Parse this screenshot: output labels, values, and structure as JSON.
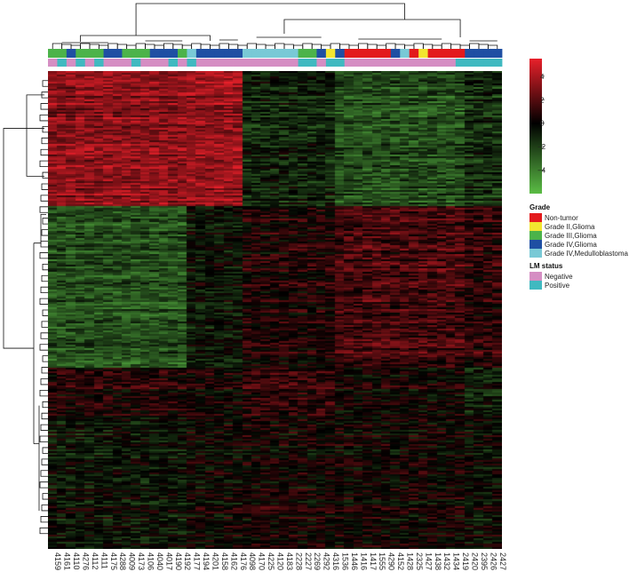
{
  "chart_data": {
    "type": "heatmap",
    "samples": [
      "4159",
      "4161",
      "4110",
      "4276",
      "4112",
      "4111",
      "4175",
      "4288",
      "4009",
      "4173",
      "4106",
      "4040",
      "4017",
      "4190",
      "4192",
      "4177",
      "4194",
      "4201",
      "4158",
      "4162",
      "4176",
      "4098",
      "4170",
      "4225",
      "4120",
      "4183",
      "2228",
      "2227",
      "2269",
      "4292",
      "4316",
      "1536",
      "1446",
      "1416",
      "1417",
      "1555",
      "4290",
      "4152",
      "1428",
      "2325",
      "1427",
      "1438",
      "1432",
      "1434",
      "2419",
      "2420",
      "2395",
      "2426",
      "2427"
    ],
    "grade_annotation": [
      "Grade III,Glioma",
      "Grade III,Glioma",
      "Grade IV,Glioma",
      "Grade III,Glioma",
      "Grade III,Glioma",
      "Grade III,Glioma",
      "Grade IV,Glioma",
      "Grade IV,Glioma",
      "Grade III,Glioma",
      "Grade III,Glioma",
      "Grade III,Glioma",
      "Grade IV,Glioma",
      "Grade IV,Glioma",
      "Grade IV,Glioma",
      "Grade III,Glioma",
      "Grade IV,Medulloblastoma",
      "Grade IV,Glioma",
      "Grade IV,Glioma",
      "Grade IV,Glioma",
      "Grade IV,Glioma",
      "Grade IV,Glioma",
      "Grade IV,Medulloblastoma",
      "Grade IV,Medulloblastoma",
      "Grade IV,Medulloblastoma",
      "Grade IV,Medulloblastoma",
      "Grade IV,Medulloblastoma",
      "Grade IV,Medulloblastoma",
      "Grade III,Glioma",
      "Grade III,Glioma",
      "Grade IV,Glioma",
      "Grade II,Glioma",
      "Grade IV,Glioma",
      "Non-tumor",
      "Non-tumor",
      "Non-tumor",
      "Non-tumor",
      "Non-tumor",
      "Grade IV,Glioma",
      "Grade IV,Medulloblastoma",
      "Non-tumor",
      "Grade II,Glioma",
      "Non-tumor",
      "Non-tumor",
      "Non-tumor",
      "Non-tumor",
      "Grade IV,Glioma",
      "Grade IV,Glioma",
      "Grade IV,Glioma",
      "Grade IV,Glioma"
    ],
    "lm_annotation": [
      "Negative",
      "Positive",
      "Negative",
      "Positive",
      "Negative",
      "Positive",
      "Negative",
      "Negative",
      "Negative",
      "Positive",
      "Negative",
      "Negative",
      "Negative",
      "Positive",
      "Negative",
      "Positive",
      "Negative",
      "Negative",
      "Negative",
      "Negative",
      "Negative",
      "Negative",
      "Negative",
      "Negative",
      "Negative",
      "Negative",
      "Negative",
      "Positive",
      "Positive",
      "Negative",
      "Positive",
      "Positive",
      "Negative",
      "Negative",
      "Negative",
      "Negative",
      "Negative",
      "Negative",
      "Negative",
      "Negative",
      "Negative",
      "Negative",
      "Negative",
      "Negative",
      "Positive",
      "Positive",
      "Positive",
      "Positive",
      "Positive"
    ],
    "color_scale": {
      "ticks": [
        4,
        2,
        0,
        -2,
        -4
      ],
      "range": [
        -6,
        5.5
      ],
      "high_color": "#e8202a",
      "mid_color": "#000000",
      "low_color": "#5bbd45"
    },
    "legend": {
      "grade_title": "Grade",
      "grade_items": [
        {
          "label": "Non-tumor",
          "color": "#e31a1c"
        },
        {
          "label": "Grade II,Glioma",
          "color": "#f2e530"
        },
        {
          "label": "Grade III,Glioma",
          "color": "#4cb34a"
        },
        {
          "label": "Grade IV,Glioma",
          "color": "#1f4fa3"
        },
        {
          "label": "Grade IV,Medulloblastoma",
          "color": "#79c9d6"
        }
      ],
      "lm_title": "LM status",
      "lm_items": [
        {
          "label": "Negative",
          "color": "#d58ec3"
        },
        {
          "label": "Positive",
          "color": "#40b9c0"
        }
      ]
    },
    "grid": false
  }
}
